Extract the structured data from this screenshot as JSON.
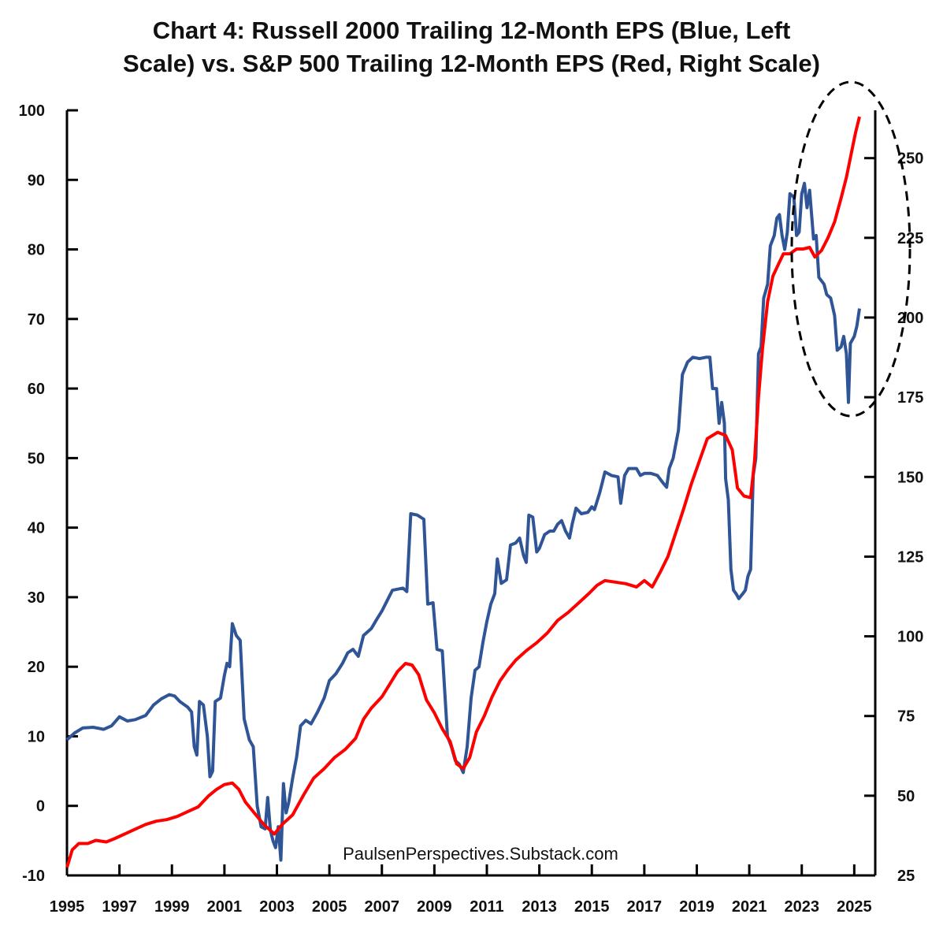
{
  "chart_data": {
    "type": "line",
    "title_lines": [
      "Chart 4: Russell 2000 Trailing 12-Month EPS (Blue, Left",
      "Scale) vs. S&P 500 Trailing 12-Month EPS (Red, Right Scale)"
    ],
    "source": "PaulsenPerspectives.Substack.com",
    "x_range": [
      1995,
      2025.8
    ],
    "x_ticks": [
      "1995",
      "1997",
      "1999",
      "2001",
      "2003",
      "2005",
      "2007",
      "2009",
      "2011",
      "2013",
      "2015",
      "2017",
      "2019",
      "2021",
      "2023",
      "2025"
    ],
    "y_left": {
      "range": [
        -10,
        100
      ],
      "ticks": [
        "100",
        "90",
        "80",
        "70",
        "60",
        "50",
        "40",
        "30",
        "20",
        "10",
        "0",
        "-10"
      ]
    },
    "y_right": {
      "range": [
        25,
        265
      ],
      "ticks": [
        "250",
        "225",
        "200",
        "175",
        "150",
        "125",
        "100",
        "75",
        "50",
        "25"
      ]
    },
    "annotation": "dashed ellipse highlighting 2022-2025 divergence",
    "colors": {
      "russell": "#2F5597",
      "sp500": "#FF0000",
      "axis": "#000000"
    },
    "series": [
      {
        "name": "Russell 2000 Trailing 12-Month EPS",
        "axis": "left",
        "color": "#2F5597",
        "points": [
          [
            1995.0,
            9.5
          ],
          [
            1995.3,
            10.5
          ],
          [
            1995.6,
            11.2
          ],
          [
            1996.0,
            11.3
          ],
          [
            1996.4,
            11.0
          ],
          [
            1996.7,
            11.5
          ],
          [
            1997.0,
            12.8
          ],
          [
            1997.3,
            12.2
          ],
          [
            1997.6,
            12.4
          ],
          [
            1998.0,
            13.0
          ],
          [
            1998.3,
            14.5
          ],
          [
            1998.6,
            15.4
          ],
          [
            1998.9,
            16.0
          ],
          [
            1999.1,
            15.8
          ],
          [
            1999.3,
            15.0
          ],
          [
            1999.6,
            14.2
          ],
          [
            1999.75,
            13.5
          ],
          [
            1999.85,
            8.5
          ],
          [
            1999.95,
            7.3
          ],
          [
            2000.05,
            15.0
          ],
          [
            2000.2,
            14.5
          ],
          [
            2000.35,
            10.0
          ],
          [
            2000.45,
            4.2
          ],
          [
            2000.55,
            5.0
          ],
          [
            2000.65,
            15.0
          ],
          [
            2000.85,
            15.5
          ],
          [
            2001.0,
            18.8
          ],
          [
            2001.1,
            20.5
          ],
          [
            2001.2,
            20.0
          ],
          [
            2001.3,
            26.2
          ],
          [
            2001.45,
            24.5
          ],
          [
            2001.6,
            23.8
          ],
          [
            2001.75,
            12.5
          ],
          [
            2001.95,
            9.5
          ],
          [
            2002.1,
            8.5
          ],
          [
            2002.25,
            0.0
          ],
          [
            2002.4,
            -3.0
          ],
          [
            2002.55,
            -3.3
          ],
          [
            2002.65,
            1.2
          ],
          [
            2002.75,
            -3.5
          ],
          [
            2002.85,
            -5.0
          ],
          [
            2002.95,
            -6.0
          ],
          [
            2003.05,
            -3.0
          ],
          [
            2003.15,
            -7.8
          ],
          [
            2003.25,
            3.2
          ],
          [
            2003.35,
            -1.0
          ],
          [
            2003.45,
            0.5
          ],
          [
            2003.6,
            4.0
          ],
          [
            2003.75,
            7.0
          ],
          [
            2003.9,
            11.5
          ],
          [
            2004.1,
            12.3
          ],
          [
            2004.3,
            11.8
          ],
          [
            2004.55,
            13.5
          ],
          [
            2004.8,
            15.5
          ],
          [
            2005.0,
            18.0
          ],
          [
            2005.25,
            19.0
          ],
          [
            2005.5,
            20.5
          ],
          [
            2005.7,
            22.0
          ],
          [
            2005.9,
            22.5
          ],
          [
            2006.1,
            21.5
          ],
          [
            2006.3,
            24.5
          ],
          [
            2006.6,
            25.5
          ],
          [
            2006.8,
            26.8
          ],
          [
            2007.0,
            28.0
          ],
          [
            2007.2,
            29.5
          ],
          [
            2007.4,
            31.0
          ],
          [
            2007.8,
            31.3
          ],
          [
            2007.95,
            30.8
          ],
          [
            2008.1,
            42.0
          ],
          [
            2008.35,
            41.8
          ],
          [
            2008.6,
            41.2
          ],
          [
            2008.75,
            29.0
          ],
          [
            2008.95,
            29.2
          ],
          [
            2009.1,
            22.5
          ],
          [
            2009.3,
            22.3
          ],
          [
            2009.5,
            10.0
          ],
          [
            2009.65,
            8.5
          ],
          [
            2009.8,
            6.5
          ],
          [
            2009.95,
            6.0
          ],
          [
            2010.1,
            4.8
          ],
          [
            2010.25,
            8.5
          ],
          [
            2010.4,
            15.5
          ],
          [
            2010.55,
            19.5
          ],
          [
            2010.7,
            20.0
          ],
          [
            2010.85,
            23.5
          ],
          [
            2011.0,
            26.5
          ],
          [
            2011.15,
            29.0
          ],
          [
            2011.3,
            30.5
          ],
          [
            2011.4,
            35.5
          ],
          [
            2011.55,
            32.0
          ],
          [
            2011.75,
            32.5
          ],
          [
            2011.9,
            37.5
          ],
          [
            2012.1,
            37.8
          ],
          [
            2012.25,
            38.5
          ],
          [
            2012.4,
            36.0
          ],
          [
            2012.5,
            35.0
          ],
          [
            2012.6,
            41.8
          ],
          [
            2012.75,
            41.5
          ],
          [
            2012.9,
            36.5
          ],
          [
            2013.0,
            37.0
          ],
          [
            2013.2,
            39.0
          ],
          [
            2013.4,
            39.5
          ],
          [
            2013.55,
            39.5
          ],
          [
            2013.7,
            40.5
          ],
          [
            2013.85,
            41.0
          ],
          [
            2014.0,
            39.5
          ],
          [
            2014.15,
            38.5
          ],
          [
            2014.25,
            40.5
          ],
          [
            2014.4,
            42.8
          ],
          [
            2014.6,
            42.0
          ],
          [
            2014.85,
            42.2
          ],
          [
            2015.0,
            43.0
          ],
          [
            2015.1,
            42.6
          ],
          [
            2015.3,
            45.0
          ],
          [
            2015.5,
            48.0
          ],
          [
            2015.75,
            47.5
          ],
          [
            2016.0,
            47.3
          ],
          [
            2016.1,
            43.5
          ],
          [
            2016.25,
            47.5
          ],
          [
            2016.4,
            48.5
          ],
          [
            2016.7,
            48.5
          ],
          [
            2016.85,
            47.5
          ],
          [
            2017.0,
            47.8
          ],
          [
            2017.25,
            47.8
          ],
          [
            2017.5,
            47.5
          ],
          [
            2017.7,
            46.5
          ],
          [
            2017.85,
            45.8
          ],
          [
            2017.95,
            48.5
          ],
          [
            2018.1,
            50.0
          ],
          [
            2018.2,
            52.0
          ],
          [
            2018.3,
            54.0
          ],
          [
            2018.45,
            62.0
          ],
          [
            2018.65,
            63.8
          ],
          [
            2018.85,
            64.5
          ],
          [
            2019.1,
            64.3
          ],
          [
            2019.35,
            64.5
          ],
          [
            2019.5,
            64.5
          ],
          [
            2019.6,
            60.0
          ],
          [
            2019.75,
            60.0
          ],
          [
            2019.85,
            55.0
          ],
          [
            2019.95,
            58.0
          ],
          [
            2020.05,
            55.0
          ],
          [
            2020.1,
            47.0
          ],
          [
            2020.2,
            44.0
          ],
          [
            2020.3,
            34.0
          ],
          [
            2020.4,
            31.0
          ],
          [
            2020.5,
            30.5
          ],
          [
            2020.6,
            29.8
          ],
          [
            2020.75,
            30.5
          ],
          [
            2020.85,
            31.0
          ],
          [
            2020.95,
            33.0
          ],
          [
            2021.05,
            34.0
          ],
          [
            2021.15,
            47.5
          ],
          [
            2021.25,
            50.0
          ],
          [
            2021.35,
            65.0
          ],
          [
            2021.45,
            66.0
          ],
          [
            2021.55,
            73.0
          ],
          [
            2021.7,
            75.0
          ],
          [
            2021.8,
            80.5
          ],
          [
            2021.95,
            82.0
          ],
          [
            2022.05,
            84.5
          ],
          [
            2022.15,
            85.0
          ],
          [
            2022.25,
            82.0
          ],
          [
            2022.35,
            80.0
          ],
          [
            2022.45,
            82.5
          ],
          [
            2022.55,
            88.0
          ],
          [
            2022.7,
            87.5
          ],
          [
            2022.8,
            82.0
          ],
          [
            2022.9,
            82.5
          ],
          [
            2023.0,
            88.0
          ],
          [
            2023.1,
            89.5
          ],
          [
            2023.2,
            86.0
          ],
          [
            2023.3,
            88.5
          ],
          [
            2023.45,
            81.5
          ],
          [
            2023.55,
            82.0
          ],
          [
            2023.65,
            76.0
          ],
          [
            2023.75,
            75.5
          ],
          [
            2023.85,
            75.0
          ],
          [
            2023.95,
            73.5
          ],
          [
            2024.1,
            73.0
          ],
          [
            2024.25,
            70.5
          ],
          [
            2024.35,
            65.5
          ],
          [
            2024.5,
            66.0
          ],
          [
            2024.6,
            67.5
          ],
          [
            2024.7,
            65.0
          ],
          [
            2024.78,
            58.0
          ],
          [
            2024.85,
            66.5
          ],
          [
            2025.0,
            67.5
          ],
          [
            2025.1,
            69.0
          ],
          [
            2025.2,
            71.5
          ]
        ]
      },
      {
        "name": "S&P 500 Trailing 12-Month EPS",
        "axis": "right",
        "color": "#FF0000",
        "points": [
          [
            1995.0,
            27.5
          ],
          [
            1995.2,
            33.0
          ],
          [
            1995.45,
            35.0
          ],
          [
            1995.8,
            35.0
          ],
          [
            1996.1,
            36.0
          ],
          [
            1996.5,
            35.5
          ],
          [
            1996.8,
            36.5
          ],
          [
            1997.2,
            38.0
          ],
          [
            1997.6,
            39.5
          ],
          [
            1998.0,
            41.0
          ],
          [
            1998.4,
            42.0
          ],
          [
            1998.8,
            42.5
          ],
          [
            1999.2,
            43.5
          ],
          [
            1999.6,
            45.0
          ],
          [
            2000.0,
            46.5
          ],
          [
            2000.4,
            50.0
          ],
          [
            2000.7,
            52.0
          ],
          [
            2001.0,
            53.5
          ],
          [
            2001.3,
            54.0
          ],
          [
            2001.55,
            52.0
          ],
          [
            2001.8,
            48.0
          ],
          [
            2002.1,
            45.0
          ],
          [
            2002.5,
            41.0
          ],
          [
            2002.9,
            38.0
          ],
          [
            2003.2,
            41.0
          ],
          [
            2003.6,
            44.0
          ],
          [
            2004.0,
            50.0
          ],
          [
            2004.4,
            55.5
          ],
          [
            2004.8,
            58.5
          ],
          [
            2005.2,
            62.0
          ],
          [
            2005.6,
            64.5
          ],
          [
            2006.0,
            68.0
          ],
          [
            2006.3,
            74.0
          ],
          [
            2006.6,
            77.5
          ],
          [
            2007.0,
            81.0
          ],
          [
            2007.3,
            85.0
          ],
          [
            2007.6,
            89.0
          ],
          [
            2007.9,
            91.5
          ],
          [
            2008.15,
            91.0
          ],
          [
            2008.4,
            88.0
          ],
          [
            2008.7,
            80.0
          ],
          [
            2009.0,
            76.0
          ],
          [
            2009.3,
            71.0
          ],
          [
            2009.6,
            67.0
          ],
          [
            2009.85,
            60.0
          ],
          [
            2010.1,
            58.5
          ],
          [
            2010.35,
            62.0
          ],
          [
            2010.6,
            70.0
          ],
          [
            2010.9,
            75.0
          ],
          [
            2011.2,
            81.0
          ],
          [
            2011.5,
            86.0
          ],
          [
            2011.8,
            89.5
          ],
          [
            2012.1,
            92.5
          ],
          [
            2012.5,
            95.5
          ],
          [
            2012.9,
            98.0
          ],
          [
            2013.3,
            101.0
          ],
          [
            2013.7,
            105.0
          ],
          [
            2014.1,
            107.5
          ],
          [
            2014.5,
            110.5
          ],
          [
            2014.9,
            113.5
          ],
          [
            2015.2,
            116.0
          ],
          [
            2015.5,
            117.5
          ],
          [
            2015.9,
            117.0
          ],
          [
            2016.3,
            116.5
          ],
          [
            2016.7,
            115.5
          ],
          [
            2017.0,
            117.5
          ],
          [
            2017.3,
            115.5
          ],
          [
            2017.6,
            120.0
          ],
          [
            2017.9,
            125.0
          ],
          [
            2018.2,
            132.5
          ],
          [
            2018.5,
            140.0
          ],
          [
            2018.8,
            148.0
          ],
          [
            2019.1,
            155.0
          ],
          [
            2019.4,
            162.0
          ],
          [
            2019.8,
            164.0
          ],
          [
            2020.1,
            163.0
          ],
          [
            2020.35,
            158.5
          ],
          [
            2020.55,
            146.5
          ],
          [
            2020.8,
            144.0
          ],
          [
            2021.05,
            143.5
          ],
          [
            2021.2,
            155.0
          ],
          [
            2021.35,
            175.0
          ],
          [
            2021.5,
            190.0
          ],
          [
            2021.7,
            205.0
          ],
          [
            2021.9,
            213.0
          ],
          [
            2022.1,
            216.5
          ],
          [
            2022.3,
            220.0
          ],
          [
            2022.55,
            220.0
          ],
          [
            2022.8,
            221.5
          ],
          [
            2023.05,
            221.5
          ],
          [
            2023.3,
            222.0
          ],
          [
            2023.5,
            219.0
          ],
          [
            2023.75,
            221.0
          ],
          [
            2024.0,
            225.0
          ],
          [
            2024.25,
            230.0
          ],
          [
            2024.5,
            237.5
          ],
          [
            2024.7,
            244.0
          ],
          [
            2024.9,
            252.0
          ],
          [
            2025.05,
            258.0
          ],
          [
            2025.2,
            263.0
          ]
        ]
      }
    ]
  }
}
